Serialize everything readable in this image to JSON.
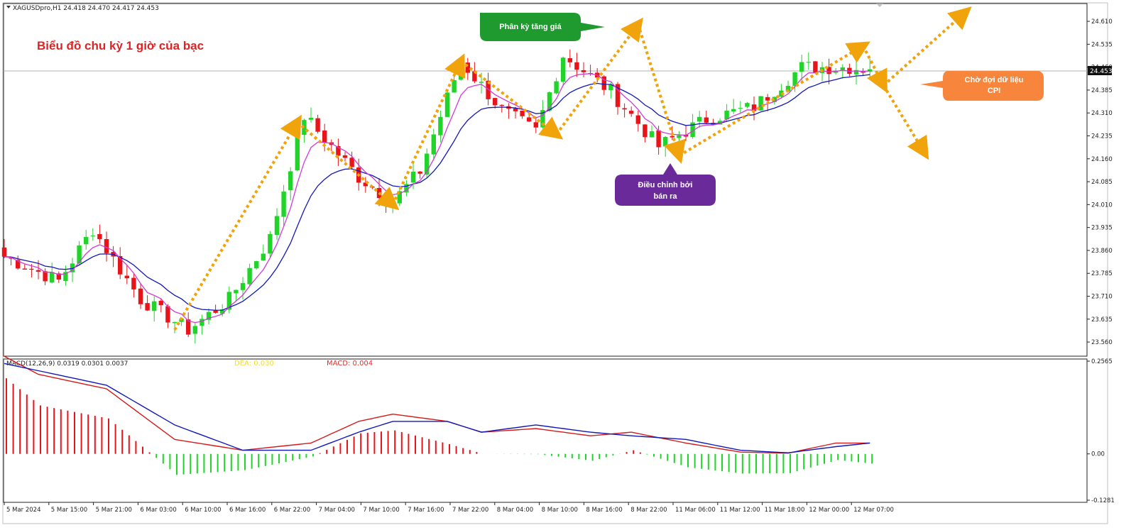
{
  "header": {
    "symbol_info": "XAGUSDpro,H1  24.418 24.470 24.417 24.453",
    "title": "Biểu đồ chu kỳ 1 giờ của bạc"
  },
  "colors": {
    "bull": "#21d42a",
    "bear": "#e8141a",
    "ma_fast": "#d13bd6",
    "ma_slow": "#1118b8",
    "zigzag": "#f0a30a",
    "macd_line": "#d41a1a",
    "signal_line": "#1118b8",
    "dea_label": "#f0dc3a",
    "green_box": "#1f9a2f",
    "purple_box": "#6a2a9a",
    "orange_box": "#f7863c"
  },
  "annotations": {
    "divergence": "Phân kỳ tăng giá",
    "correction_line1": "Điều chỉnh bởi",
    "correction_line2": "bán ra",
    "wait_line1": "Chờ đợi dữ liệu",
    "wait_line2": "CPI"
  },
  "price_panel": {
    "current_price": "24.453",
    "ylim": [
      23.53,
      24.645
    ],
    "yticks": [
      "24.610",
      "24.535",
      "24.460",
      "24.385",
      "24.310",
      "24.235",
      "24.160",
      "24.085",
      "24.010",
      "23.935",
      "23.860",
      "23.785",
      "23.710",
      "23.635",
      "23.560"
    ]
  },
  "macd_panel": {
    "info": "MACD(12,26,9) 0.0319 0.0301 0.0037",
    "dea_label": "DEA: 0.030",
    "macd_label": "MACD: 0.004",
    "ylim": [
      -0.1281,
      0.2565
    ],
    "yticks": [
      "0.2565",
      "0.00",
      "-0.1281"
    ]
  },
  "x_axis": {
    "labels": [
      "5 Mar 2024",
      "5 Mar 15:00",
      "5 Mar 21:00",
      "6 Mar 03:00",
      "6 Mar 10:00",
      "6 Mar 16:00",
      "6 Mar 22:00",
      "7 Mar 04:00",
      "7 Mar 10:00",
      "7 Mar 16:00",
      "7 Mar 22:00",
      "8 Mar 04:00",
      "8 Mar 10:00",
      "8 Mar 16:00",
      "8 Mar 22:00",
      "11 Mar 06:00",
      "11 Mar 12:00",
      "11 Mar 18:00",
      "12 Mar 00:00",
      "12 Mar 07:00"
    ]
  },
  "chart_data": {
    "type": "line",
    "ylabel": "",
    "xlabel": "",
    "price_ylim": [
      23.53,
      24.645
    ],
    "price_key_points": [
      {
        "bar": 0,
        "close": 23.84
      },
      {
        "bar": 8,
        "close": 23.76
      },
      {
        "bar": 13,
        "close": 23.93
      },
      {
        "bar": 20,
        "close": 23.7
      },
      {
        "bar": 27,
        "close": 23.6
      },
      {
        "bar": 33,
        "close": 23.7
      },
      {
        "bar": 39,
        "close": 23.9
      },
      {
        "bar": 44,
        "close": 24.3
      },
      {
        "bar": 52,
        "close": 24.1
      },
      {
        "bar": 57,
        "close": 24.02
      },
      {
        "bar": 61,
        "close": 24.12
      },
      {
        "bar": 67,
        "close": 24.48
      },
      {
        "bar": 73,
        "close": 24.32
      },
      {
        "bar": 78,
        "close": 24.25
      },
      {
        "bar": 82,
        "close": 24.5
      },
      {
        "bar": 89,
        "close": 24.38
      },
      {
        "bar": 96,
        "close": 24.2
      },
      {
        "bar": 103,
        "close": 24.29
      },
      {
        "bar": 110,
        "close": 24.33
      },
      {
        "bar": 117,
        "close": 24.46
      },
      {
        "bar": 124,
        "close": 24.46
      },
      {
        "bar": 127,
        "close": 24.453
      }
    ],
    "zigzag": [
      {
        "bar": 25,
        "price": 23.6
      },
      {
        "bar": 43,
        "price": 24.28
      },
      {
        "bar": 57,
        "price": 24.01
      },
      {
        "bar": 67,
        "price": 24.48
      },
      {
        "bar": 81,
        "price": 24.24
      },
      {
        "bar": 93,
        "price": 24.6
      },
      {
        "bar": 99,
        "price": 24.17
      },
      {
        "bar": 126,
        "price": 24.53
      },
      {
        "bar": 129,
        "price": 24.4
      },
      {
        "bar": 141,
        "price": 24.64
      },
      {
        "bar": 135,
        "price": 24.18
      }
    ],
    "macd_ylim": [
      -0.1281,
      0.2565
    ],
    "macd_key_points": [
      {
        "bar": 0,
        "macd": 0.27,
        "signal": 0.25
      },
      {
        "bar": 5,
        "macd": 0.22,
        "signal": 0.23
      },
      {
        "bar": 15,
        "macd": 0.18,
        "signal": 0.19
      },
      {
        "bar": 25,
        "macd": 0.04,
        "signal": 0.08
      },
      {
        "bar": 35,
        "macd": 0.01,
        "signal": 0.01
      },
      {
        "bar": 45,
        "macd": 0.03,
        "signal": 0.01
      },
      {
        "bar": 52,
        "macd": 0.09,
        "signal": 0.06
      },
      {
        "bar": 57,
        "macd": 0.11,
        "signal": 0.09
      },
      {
        "bar": 65,
        "macd": 0.09,
        "signal": 0.09
      },
      {
        "bar": 70,
        "macd": 0.06,
        "signal": 0.06
      },
      {
        "bar": 78,
        "macd": 0.07,
        "signal": 0.08
      },
      {
        "bar": 86,
        "macd": 0.05,
        "signal": 0.06
      },
      {
        "bar": 92,
        "macd": 0.06,
        "signal": 0.05
      },
      {
        "bar": 100,
        "macd": 0.03,
        "signal": 0.04
      },
      {
        "bar": 108,
        "macd": 0.005,
        "signal": 0.01
      },
      {
        "bar": 115,
        "macd": 0.002,
        "signal": 0.003
      },
      {
        "bar": 122,
        "macd": 0.03,
        "signal": 0.02
      },
      {
        "bar": 127,
        "macd": 0.03,
        "signal": 0.03
      }
    ]
  }
}
